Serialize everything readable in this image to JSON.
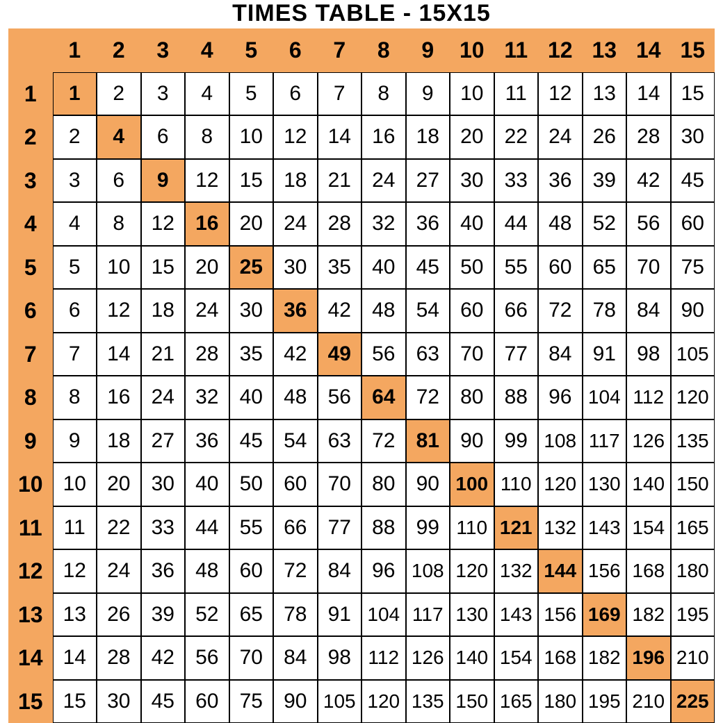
{
  "title": "TIMES TABLE - 15X15",
  "grid_size": 15,
  "colors": {
    "header_bg": "#f4a760",
    "diagonal_bg": "#f4a760",
    "cell_bg": "#ffffff",
    "border": "#000000",
    "text": "#000000"
  },
  "typography": {
    "title_fontsize": 34,
    "title_fontweight": 900,
    "header_fontsize": 32,
    "header_fontweight": 900,
    "cell_fontsize": 30,
    "diagonal_fontweight": 900
  },
  "column_headers": [
    1,
    2,
    3,
    4,
    5,
    6,
    7,
    8,
    9,
    10,
    11,
    12,
    13,
    14,
    15
  ],
  "row_headers": [
    1,
    2,
    3,
    4,
    5,
    6,
    7,
    8,
    9,
    10,
    11,
    12,
    13,
    14,
    15
  ],
  "rows": [
    [
      1,
      2,
      3,
      4,
      5,
      6,
      7,
      8,
      9,
      10,
      11,
      12,
      13,
      14,
      15
    ],
    [
      2,
      4,
      6,
      8,
      10,
      12,
      14,
      16,
      18,
      20,
      22,
      24,
      26,
      28,
      30
    ],
    [
      3,
      6,
      9,
      12,
      15,
      18,
      21,
      24,
      27,
      30,
      33,
      36,
      39,
      42,
      45
    ],
    [
      4,
      8,
      12,
      16,
      20,
      24,
      28,
      32,
      36,
      40,
      44,
      48,
      52,
      56,
      60
    ],
    [
      5,
      10,
      15,
      20,
      25,
      30,
      35,
      40,
      45,
      50,
      55,
      60,
      65,
      70,
      75
    ],
    [
      6,
      12,
      18,
      24,
      30,
      36,
      42,
      48,
      54,
      60,
      66,
      72,
      78,
      84,
      90
    ],
    [
      7,
      14,
      21,
      28,
      35,
      42,
      49,
      56,
      63,
      70,
      77,
      84,
      91,
      98,
      105
    ],
    [
      8,
      16,
      24,
      32,
      40,
      48,
      56,
      64,
      72,
      80,
      88,
      96,
      104,
      112,
      120
    ],
    [
      9,
      18,
      27,
      36,
      45,
      54,
      63,
      72,
      81,
      90,
      99,
      108,
      117,
      126,
      135
    ],
    [
      10,
      20,
      30,
      40,
      50,
      60,
      70,
      80,
      90,
      100,
      110,
      120,
      130,
      140,
      150
    ],
    [
      11,
      22,
      33,
      44,
      55,
      66,
      77,
      88,
      99,
      110,
      121,
      132,
      143,
      154,
      165
    ],
    [
      12,
      24,
      36,
      48,
      60,
      72,
      84,
      96,
      108,
      120,
      132,
      144,
      156,
      168,
      180
    ],
    [
      13,
      26,
      39,
      52,
      65,
      78,
      91,
      104,
      117,
      130,
      143,
      156,
      169,
      182,
      195
    ],
    [
      14,
      28,
      42,
      56,
      70,
      84,
      98,
      112,
      126,
      140,
      154,
      168,
      182,
      196,
      210
    ],
    [
      15,
      30,
      45,
      60,
      75,
      90,
      105,
      120,
      135,
      150,
      165,
      180,
      195,
      210,
      225
    ]
  ]
}
